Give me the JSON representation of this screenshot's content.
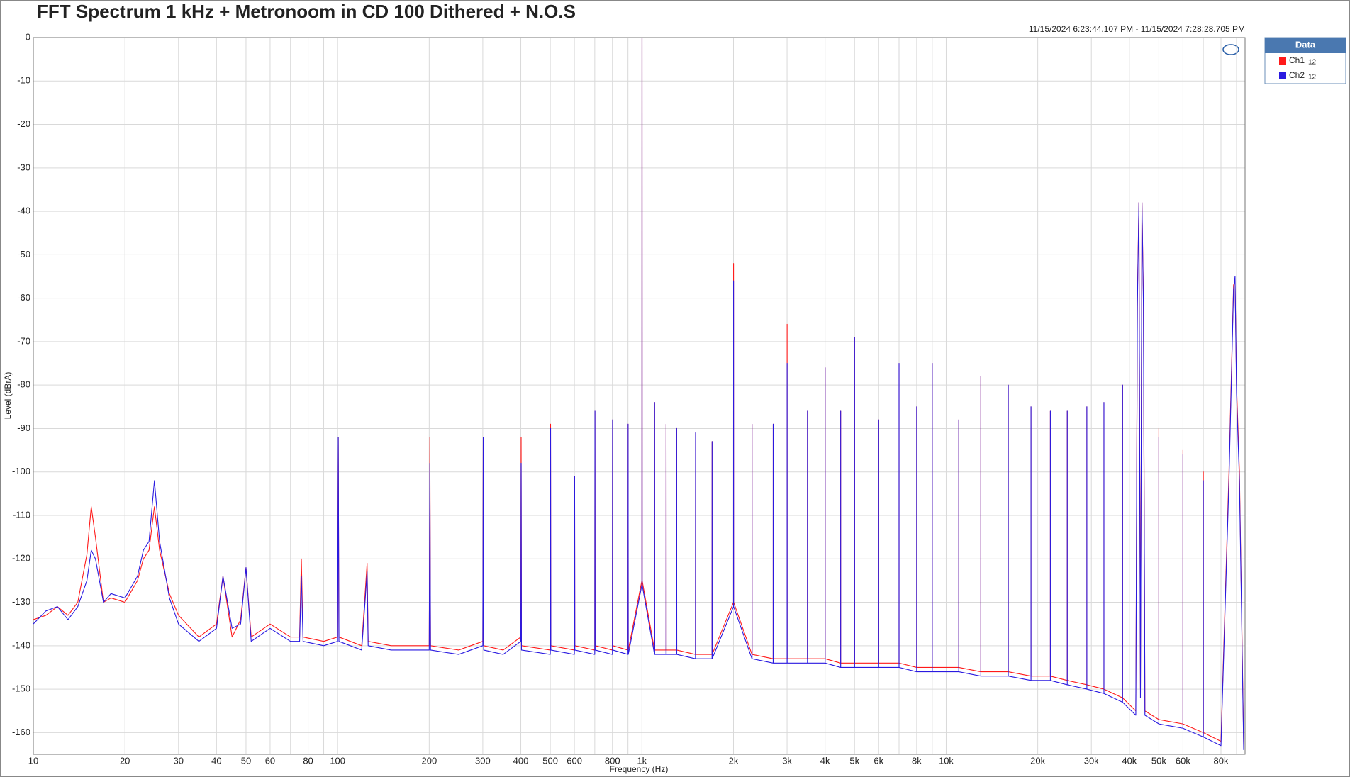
{
  "chart_data": {
    "type": "line",
    "title": "FFT Spectrum 1 kHz + Metronoom in CD 100 Dithered + N.O.S",
    "subtitle": "11/15/2024 6:23:44.107 PM - 11/15/2024 7:28:28.705 PM",
    "x_label": "Frequency (Hz)",
    "y_label": "Level (dBrA)",
    "x_log": true,
    "grid": true,
    "legend_title": "Data",
    "legend_position": "outside-top-right",
    "xlim": [
      10,
      96000
    ],
    "ylim": [
      -165,
      0
    ],
    "yticks": [
      0,
      -10,
      -20,
      -30,
      -40,
      -50,
      -60,
      -70,
      -80,
      -90,
      -100,
      -110,
      -120,
      -130,
      -140,
      -150,
      -160
    ],
    "xticks": [
      10,
      20,
      30,
      40,
      50,
      60,
      80,
      100,
      200,
      300,
      400,
      500,
      600,
      800,
      {
        "value": 1000,
        "label": "1k"
      },
      {
        "value": 2000,
        "label": "2k"
      },
      {
        "value": 3000,
        "label": "3k"
      },
      {
        "value": 4000,
        "label": "4k"
      },
      {
        "value": 5000,
        "label": "5k"
      },
      {
        "value": 6000,
        "label": "6k"
      },
      {
        "value": 8000,
        "label": "8k"
      },
      {
        "value": 10000,
        "label": "10k"
      },
      {
        "value": 20000,
        "label": "20k"
      },
      {
        "value": 30000,
        "label": "30k"
      },
      {
        "value": 40000,
        "label": "40k"
      },
      {
        "value": 50000,
        "label": "50k"
      },
      {
        "value": 60000,
        "label": "60k"
      },
      {
        "value": 80000,
        "label": "80k"
      }
    ],
    "x_minor_ticks": [
      70,
      90,
      700,
      900,
      7000,
      9000,
      70000,
      90000
    ],
    "x": [
      10,
      11,
      12,
      13,
      14,
      15,
      15.5,
      16,
      17,
      18,
      20,
      22,
      23,
      24,
      25,
      26,
      28,
      30,
      35,
      40,
      42,
      45,
      48,
      50,
      52,
      60,
      70,
      75,
      76,
      77,
      90,
      100,
      100.5,
      101,
      120,
      125,
      126,
      150,
      200,
      201,
      202,
      250,
      300,
      301,
      302,
      350,
      400,
      401,
      402,
      500,
      501,
      502,
      600,
      601,
      602,
      700,
      701,
      702,
      800,
      801,
      802,
      900,
      901,
      902,
      1000,
      1001,
      1002,
      1100,
      1101,
      1102,
      1200,
      1201,
      1202,
      1300,
      1301,
      1302,
      1500,
      1501,
      1502,
      1700,
      1701,
      1702,
      2000,
      2001,
      2002,
      2300,
      2301,
      2302,
      2700,
      2701,
      2702,
      3000,
      3001,
      3002,
      3500,
      3501,
      3502,
      4000,
      4001,
      4002,
      4500,
      4501,
      4502,
      5000,
      5001,
      5002,
      6000,
      6001,
      6002,
      7000,
      7001,
      7002,
      8000,
      8001,
      8002,
      9000,
      9001,
      9002,
      11000,
      11001,
      11002,
      13000,
      13001,
      13002,
      16000,
      16001,
      16002,
      19000,
      19001,
      19002,
      22000,
      22001,
      22002,
      25000,
      25001,
      25002,
      29000,
      29001,
      29002,
      33000,
      33001,
      33002,
      38000,
      38001,
      38002,
      42000,
      42500,
      43000,
      43500,
      44000,
      44500,
      45000,
      50000,
      50001,
      50002,
      60000,
      60001,
      60002,
      70000,
      70001,
      70002,
      80000,
      85000,
      88000,
      89000,
      90000,
      92000,
      95000
    ],
    "series": [
      {
        "name": "Ch1",
        "suffix": "12",
        "color": "#ff1a1a",
        "values": [
          -134,
          -133,
          -131,
          -133,
          -130,
          -119,
          -108,
          -115,
          -130,
          -129,
          -130,
          -125,
          -120,
          -118,
          -108,
          -118,
          -128,
          -133,
          -138,
          -135,
          -124,
          -138,
          -134,
          -122,
          -138,
          -135,
          -138,
          -138,
          -120,
          -138,
          -139,
          -138,
          -92,
          -138,
          -140,
          -121,
          -139,
          -140,
          -140,
          -92,
          -140,
          -141,
          -139,
          -92,
          -140,
          -141,
          -138,
          -92,
          -140,
          -141,
          -89,
          -140,
          -141,
          -101,
          -140,
          -141,
          -86,
          -140,
          -141,
          -88,
          -140,
          -141,
          -89,
          -141,
          -125,
          0,
          -125,
          -141,
          -84,
          -141,
          -141,
          -89,
          -141,
          -141,
          -90,
          -141,
          -142,
          -91,
          -142,
          -142,
          -93,
          -142,
          -130,
          -52,
          -130,
          -142,
          -89,
          -142,
          -143,
          -89,
          -143,
          -143,
          -66,
          -143,
          -143,
          -86,
          -143,
          -143,
          -76,
          -143,
          -144,
          -86,
          -144,
          -144,
          -69,
          -144,
          -144,
          -88,
          -144,
          -144,
          -75,
          -144,
          -145,
          -85,
          -145,
          -145,
          -75,
          -145,
          -145,
          -88,
          -145,
          -146,
          -78,
          -146,
          -146,
          -80,
          -146,
          -147,
          -85,
          -147,
          -147,
          -86,
          -147,
          -148,
          -86,
          -148,
          -149,
          -85,
          -149,
          -150,
          -84,
          -150,
          -152,
          -80,
          -152,
          -155,
          -60,
          -38,
          -150,
          -38,
          -60,
          -155,
          -157,
          -90,
          -157,
          -158,
          -95,
          -158,
          -160,
          -100,
          -160,
          -162,
          -100,
          -57,
          -56,
          -80,
          -100,
          -163
        ]
      },
      {
        "name": "Ch2",
        "suffix": "12",
        "color": "#2a1ae0",
        "values": [
          -135,
          -132,
          -131,
          -134,
          -131,
          -125,
          -118,
          -120,
          -130,
          -128,
          -129,
          -124,
          -118,
          -116,
          -102,
          -116,
          -129,
          -135,
          -139,
          -136,
          -124,
          -136,
          -135,
          -122,
          -139,
          -136,
          -139,
          -139,
          -124,
          -139,
          -140,
          -139,
          -92,
          -139,
          -141,
          -123,
          -140,
          -141,
          -141,
          -98,
          -141,
          -142,
          -140,
          -92,
          -141,
          -142,
          -139,
          -98,
          -141,
          -142,
          -90,
          -141,
          -142,
          -101,
          -141,
          -142,
          -86,
          -141,
          -142,
          -88,
          -141,
          -142,
          -89,
          -142,
          -126,
          0,
          -126,
          -142,
          -84,
          -142,
          -142,
          -89,
          -142,
          -142,
          -90,
          -142,
          -143,
          -91,
          -143,
          -143,
          -93,
          -143,
          -131,
          -56,
          -131,
          -143,
          -89,
          -143,
          -144,
          -89,
          -144,
          -144,
          -75,
          -144,
          -144,
          -86,
          -144,
          -144,
          -76,
          -144,
          -145,
          -86,
          -145,
          -145,
          -69,
          -145,
          -145,
          -88,
          -145,
          -145,
          -75,
          -145,
          -146,
          -85,
          -146,
          -146,
          -75,
          -146,
          -146,
          -88,
          -146,
          -147,
          -78,
          -147,
          -147,
          -80,
          -147,
          -148,
          -85,
          -148,
          -148,
          -86,
          -148,
          -149,
          -86,
          -149,
          -150,
          -85,
          -150,
          -151,
          -84,
          -151,
          -153,
          -80,
          -153,
          -156,
          -62,
          -38,
          -152,
          -38,
          -62,
          -156,
          -158,
          -92,
          -158,
          -159,
          -96,
          -159,
          -161,
          -102,
          -161,
          -163,
          -102,
          -58,
          -55,
          -82,
          -102,
          -164
        ]
      }
    ]
  }
}
